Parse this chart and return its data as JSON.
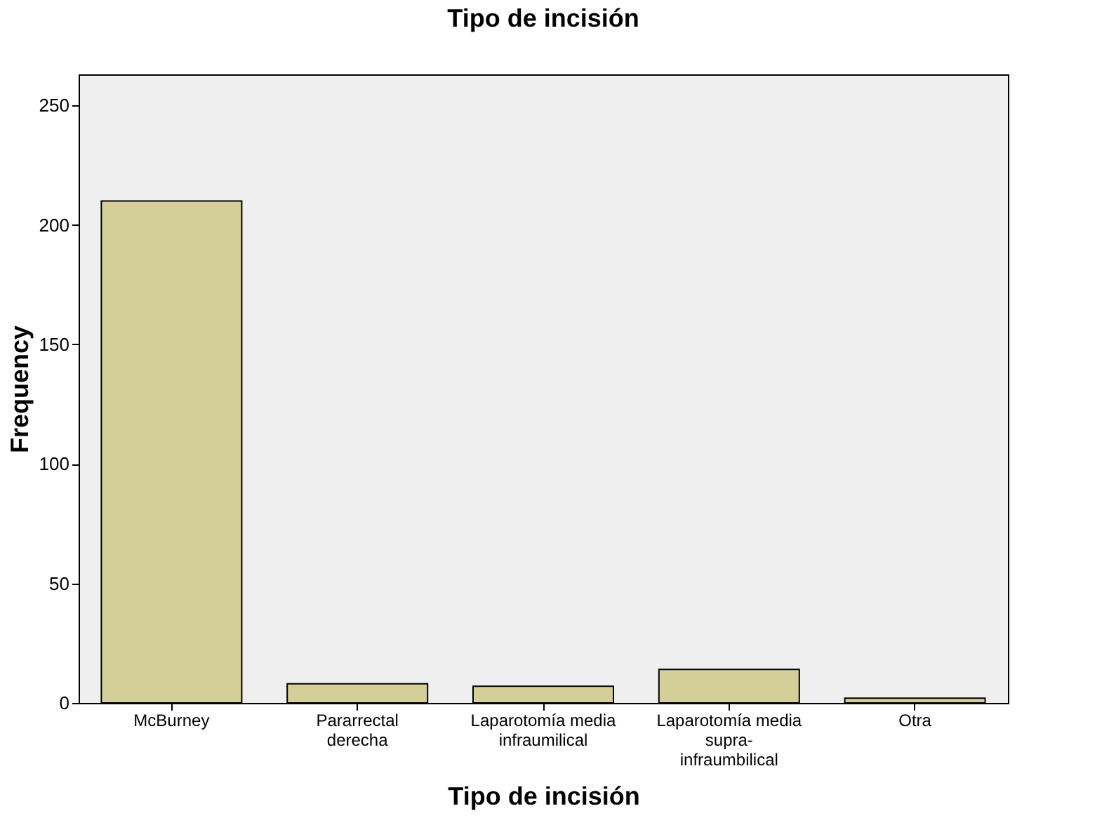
{
  "chart_data": {
    "type": "bar",
    "title": "Tipo de incisión",
    "xlabel": "Tipo de incisión",
    "ylabel": "Frequency",
    "categories": [
      "McBurney",
      "Pararrectal derecha",
      "Laparotomía media infraumilical",
      "Laparotomía media supra-infraumbilical",
      "Otra"
    ],
    "values": [
      210,
      8,
      7,
      14,
      2
    ],
    "color": "#d4cf99",
    "ylim": [
      0,
      263
    ],
    "yticks": [
      0,
      50,
      100,
      150,
      200,
      250
    ],
    "grid": false
  }
}
